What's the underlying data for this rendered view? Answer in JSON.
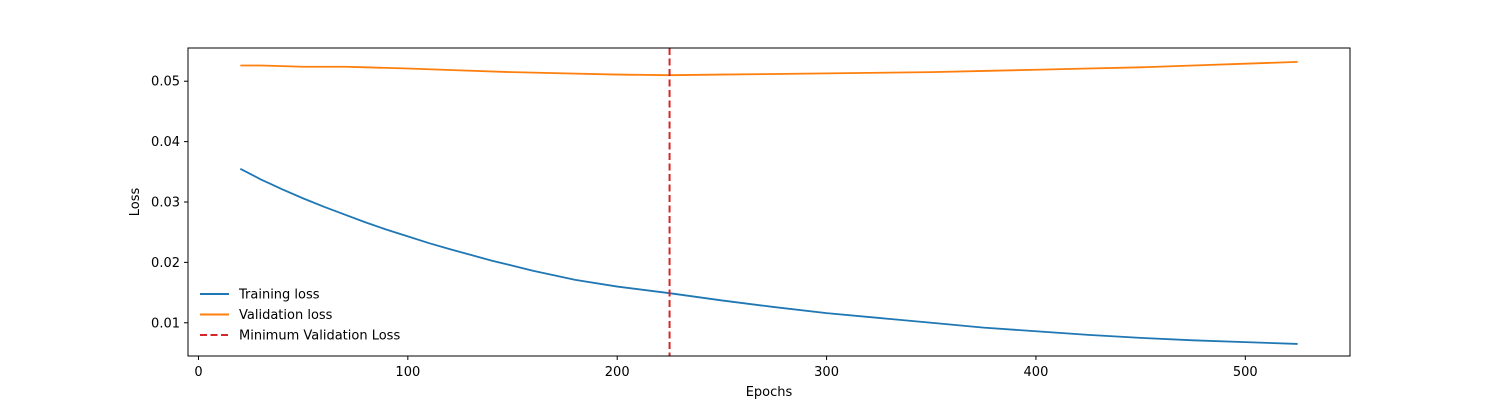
{
  "chart_data": {
    "type": "line",
    "title": "",
    "xlabel": "Epochs",
    "ylabel": "Loss",
    "xlim": [
      -5,
      550
    ],
    "ylim": [
      0.0045,
      0.0555
    ],
    "xticks": [
      0,
      100,
      200,
      300,
      400,
      500
    ],
    "yticks": [
      0.01,
      0.02,
      0.03,
      0.04,
      0.05
    ],
    "xtick_labels": [
      "0",
      "100",
      "200",
      "300",
      "400",
      "500"
    ],
    "ytick_labels": [
      "0.01",
      "0.02",
      "0.03",
      "0.04",
      "0.05"
    ],
    "grid": false,
    "legend_position": "lower-left",
    "series": [
      {
        "name": "Training loss",
        "color": "#1f77b4",
        "style": "solid",
        "x": [
          20,
          25,
          30,
          35,
          40,
          50,
          60,
          70,
          80,
          90,
          100,
          110,
          120,
          140,
          160,
          180,
          200,
          225,
          250,
          275,
          300,
          325,
          350,
          375,
          400,
          425,
          450,
          475,
          500,
          525
        ],
        "y": [
          0.0355,
          0.0346,
          0.0337,
          0.0329,
          0.0321,
          0.0306,
          0.0292,
          0.0279,
          0.0266,
          0.0254,
          0.0243,
          0.0232,
          0.0222,
          0.0203,
          0.0186,
          0.0171,
          0.016,
          0.0149,
          0.0137,
          0.0126,
          0.0116,
          0.0108,
          0.01,
          0.0092,
          0.0086,
          0.008,
          0.0075,
          0.0071,
          0.0068,
          0.0065
        ]
      },
      {
        "name": "Validation loss",
        "color": "#ff7f0e",
        "style": "solid",
        "x": [
          20,
          30,
          40,
          50,
          60,
          70,
          80,
          100,
          125,
          150,
          175,
          200,
          225,
          250,
          275,
          300,
          325,
          350,
          375,
          400,
          425,
          450,
          475,
          500,
          525
        ],
        "y": [
          0.0526,
          0.0526,
          0.0525,
          0.0524,
          0.0524,
          0.0524,
          0.0523,
          0.0521,
          0.0518,
          0.0515,
          0.0513,
          0.0511,
          0.051,
          0.0511,
          0.0512,
          0.0513,
          0.0514,
          0.0515,
          0.0517,
          0.0519,
          0.0521,
          0.0523,
          0.0526,
          0.0529,
          0.0532
        ]
      },
      {
        "name": "Minimum Validation Loss",
        "color": "#d62728",
        "style": "dashed",
        "vertical_line_x": 225
      }
    ]
  }
}
